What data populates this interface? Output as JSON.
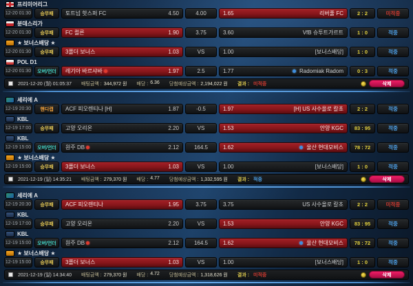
{
  "colors": {
    "win_text": "#4da0e8",
    "miss_text": "#cf3a30",
    "selected_cell_bg": "#88161b",
    "score_text": "#e4d23e",
    "type_wdl": "#e7ca55",
    "type_overunder": "#43d4c6",
    "type_handicap": "#f2a23a",
    "delete_button": "#c9124f",
    "divider_accent": "#66aaec"
  },
  "groups": [
    {
      "rows": [
        {
          "league": "프리미어리그",
          "icon": "premier-league",
          "time": "12-20 01:30",
          "type": {
            "label": "승무패",
            "style": "wdl"
          },
          "home": {
            "name": "토트넘 핫스퍼 FC",
            "odds": "4.50",
            "selected": false,
            "marker": ""
          },
          "mid": "4.00",
          "away": {
            "odds": "1.65",
            "name": "리버풀 FC",
            "selected": true,
            "marker": ""
          },
          "score": "2 : 2",
          "status": {
            "label": "미적중",
            "style": "miss"
          }
        },
        {
          "league": "분데스리가",
          "icon": "bundesliga",
          "time": "12-20 01:30",
          "type": {
            "label": "승무패",
            "style": "wdl"
          },
          "home": {
            "name": "FC 쾰른",
            "odds": "1.90",
            "selected": true,
            "marker": ""
          },
          "mid": "3.75",
          "away": {
            "odds": "3.60",
            "name": "VfB 슈투트가르트",
            "selected": false,
            "marker": ""
          },
          "score": "1 : 0",
          "status": {
            "label": "적중",
            "style": "win"
          }
        },
        {
          "league": "★ 보너스배당 ★",
          "icon": "bonus",
          "time": "12-20 01:30",
          "type": {
            "label": "승무패",
            "style": "wdl"
          },
          "home": {
            "name": "3폴더 보너스",
            "odds": "1.03",
            "selected": true,
            "marker": ""
          },
          "mid": "VS",
          "away": {
            "odds": "1.00",
            "name": "[보너스배당]",
            "selected": false,
            "marker": ""
          },
          "score": "1 : 0",
          "status": {
            "label": "적중",
            "style": "win"
          }
        },
        {
          "league": "POL D1",
          "icon": "poland",
          "time": "12-20 01:30",
          "type": {
            "label": "오버/언더",
            "style": "ou"
          },
          "home": {
            "name": "레기아 바르샤바",
            "odds": "1.97",
            "selected": true,
            "marker": "red-dot"
          },
          "mid": "2.5",
          "away": {
            "odds": "1.77",
            "name": "Radomiak Radom",
            "selected": false,
            "marker": "blue-dot"
          },
          "score": "0 : 3",
          "status": {
            "label": "적중",
            "style": "win"
          }
        }
      ],
      "footer": {
        "date": "2021-12-20 (월) 01:05:37",
        "bet_label": "배팅금액 :",
        "bet_value": "344,972 원",
        "odds_label": "배당 :",
        "odds_value": "6.36",
        "payout_label": "당첨예상금액 :",
        "payout_value": "2,194,022 원",
        "result_label": "결과 :",
        "result_value": "미적중",
        "result_style": "miss",
        "delete_label": "삭제"
      }
    },
    {
      "rows": [
        {
          "league": "세리에 A",
          "icon": "serie-a",
          "time": "12-19 20:30",
          "type": {
            "label": "핸디캡",
            "style": "handicap"
          },
          "home": {
            "name": "ACF 피오렌티나 [H]",
            "odds": "1.87",
            "selected": false,
            "marker": ""
          },
          "mid": "-0.5",
          "away": {
            "odds": "1.97",
            "name": "[H] US 사수올로 칼초",
            "selected": true,
            "marker": ""
          },
          "score": "2 : 2",
          "status": {
            "label": "적중",
            "style": "win"
          }
        },
        {
          "league": "KBL",
          "icon": "kbl",
          "time": "12-19 17:00",
          "type": {
            "label": "승무패",
            "style": "wdl"
          },
          "home": {
            "name": "고양 오리온",
            "odds": "2.20",
            "selected": false,
            "marker": ""
          },
          "mid": "VS",
          "away": {
            "odds": "1.53",
            "name": "안양 KGC",
            "selected": true,
            "marker": ""
          },
          "score": "83 : 95",
          "status": {
            "label": "적중",
            "style": "win"
          }
        },
        {
          "league": "KBL",
          "icon": "kbl",
          "time": "12-19 15:00",
          "type": {
            "label": "오버/언더",
            "style": "ou"
          },
          "home": {
            "name": "원주 DB",
            "odds": "2.12",
            "selected": false,
            "marker": "red-dot"
          },
          "mid": "164.5",
          "away": {
            "odds": "1.62",
            "name": "울산 현대모비스",
            "selected": true,
            "marker": "blue-dot"
          },
          "score": "78 : 72",
          "status": {
            "label": "적중",
            "style": "win"
          }
        },
        {
          "league": "★ 보너스배당 ★",
          "icon": "bonus",
          "time": "12-19 15:00",
          "type": {
            "label": "승무패",
            "style": "wdl"
          },
          "home": {
            "name": "3폴더 보너스",
            "odds": "1.03",
            "selected": true,
            "marker": ""
          },
          "mid": "VS",
          "away": {
            "odds": "1.00",
            "name": "[보너스배당]",
            "selected": false,
            "marker": ""
          },
          "score": "1 : 0",
          "status": {
            "label": "적중",
            "style": "win"
          }
        }
      ],
      "footer": {
        "date": "2021-12-19 (일) 14:35:21",
        "bet_label": "배팅금액 :",
        "bet_value": "279,370 원",
        "odds_label": "배당 :",
        "odds_value": "4.77",
        "payout_label": "당첨예상금액 :",
        "payout_value": "1,332,595 원",
        "result_label": "결과 :",
        "result_value": "적중",
        "result_style": "win",
        "delete_label": "삭제"
      }
    },
    {
      "rows": [
        {
          "league": "세리에 A",
          "icon": "serie-a",
          "time": "12-19 20:30",
          "type": {
            "label": "승무패",
            "style": "wdl"
          },
          "home": {
            "name": "ACF 피오렌티나",
            "odds": "1.95",
            "selected": true,
            "marker": ""
          },
          "mid": "3.75",
          "away": {
            "odds": "3.75",
            "name": "US 사수올로 칼초",
            "selected": false,
            "marker": ""
          },
          "score": "2 : 2",
          "status": {
            "label": "미적중",
            "style": "miss"
          }
        },
        {
          "league": "KBL",
          "icon": "kbl",
          "time": "12-19 17:00",
          "type": {
            "label": "승무패",
            "style": "wdl"
          },
          "home": {
            "name": "고양 오리온",
            "odds": "2.20",
            "selected": false,
            "marker": ""
          },
          "mid": "VS",
          "away": {
            "odds": "1.53",
            "name": "안양 KGC",
            "selected": true,
            "marker": ""
          },
          "score": "83 : 95",
          "status": {
            "label": "적중",
            "style": "win"
          }
        },
        {
          "league": "KBL",
          "icon": "kbl",
          "time": "12-19 15:00",
          "type": {
            "label": "오버/언더",
            "style": "ou"
          },
          "home": {
            "name": "원주 DB",
            "odds": "2.12",
            "selected": false,
            "marker": "red-dot"
          },
          "mid": "164.5",
          "away": {
            "odds": "1.62",
            "name": "울산 현대모비스",
            "selected": true,
            "marker": "blue-dot"
          },
          "score": "78 : 72",
          "status": {
            "label": "적중",
            "style": "win"
          }
        },
        {
          "league": "★ 보너스배당 ★",
          "icon": "bonus",
          "time": "12-19 15:00",
          "type": {
            "label": "승무패",
            "style": "wdl"
          },
          "home": {
            "name": "3폴더 보너스",
            "odds": "1.03",
            "selected": true,
            "marker": ""
          },
          "mid": "VS",
          "away": {
            "odds": "1.00",
            "name": "[보너스배당]",
            "selected": false,
            "marker": ""
          },
          "score": "1 : 0",
          "status": {
            "label": "적중",
            "style": "win"
          }
        }
      ],
      "footer": {
        "date": "2021-12-19 (일) 14:34:40",
        "bet_label": "배팅금액 :",
        "bet_value": "279,370 원",
        "odds_label": "배당 :",
        "odds_value": "4.72",
        "payout_label": "당첨예상금액 :",
        "payout_value": "1,318,626 원",
        "result_label": "결과 :",
        "result_value": "미적중",
        "result_style": "miss",
        "delete_label": "삭제"
      }
    }
  ]
}
